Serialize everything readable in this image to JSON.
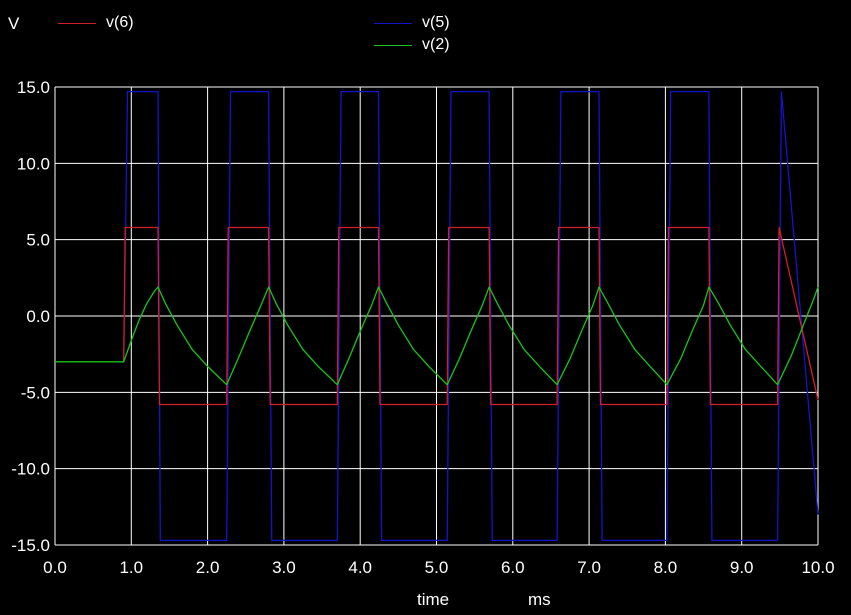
{
  "chart_data": {
    "type": "line",
    "ylabel_unit": "V",
    "xlabel": "time",
    "xlabel_unit": "ms",
    "xlim": [
      0.0,
      10.0
    ],
    "ylim": [
      -15.0,
      15.0
    ],
    "grid": true,
    "x_ticks": [
      "0.0",
      "1.0",
      "2.0",
      "3.0",
      "4.0",
      "5.0",
      "6.0",
      "7.0",
      "8.0",
      "9.0",
      "10.0"
    ],
    "y_ticks": [
      "15.0",
      "10.0",
      "5.0",
      "0.0",
      "-5.0",
      "-10.0",
      "-15.0"
    ],
    "legend": [
      {
        "name": "v(6)",
        "color": "#d01f2a"
      },
      {
        "name": "v(5)",
        "color": "#1414c8"
      },
      {
        "name": "v(2)",
        "color": "#18c418"
      }
    ],
    "series": [
      {
        "name": "v(6)",
        "color": "#d01f2a",
        "x": [
          0.9,
          0.92,
          1.35,
          1.37,
          2.25,
          2.27,
          2.8,
          2.82,
          3.7,
          3.72,
          4.24,
          4.26,
          5.14,
          5.16,
          5.69,
          5.71,
          6.58,
          6.6,
          7.13,
          7.15,
          8.02,
          8.04,
          8.57,
          8.59,
          9.47,
          9.49,
          10.0
        ],
        "values": [
          -3.0,
          5.8,
          5.8,
          -5.8,
          -5.8,
          5.8,
          5.8,
          -5.8,
          -5.8,
          5.8,
          5.8,
          -5.8,
          -5.8,
          5.8,
          5.8,
          -5.8,
          -5.8,
          5.8,
          5.8,
          -5.8,
          -5.8,
          5.8,
          5.8,
          -5.8,
          -5.8,
          5.8,
          -5.5
        ]
      },
      {
        "name": "v(5)",
        "color": "#1414c8",
        "x": [
          0.9,
          0.95,
          1.35,
          1.38,
          2.25,
          2.3,
          2.8,
          2.84,
          3.7,
          3.75,
          4.24,
          4.28,
          5.14,
          5.19,
          5.69,
          5.73,
          6.58,
          6.63,
          7.13,
          7.17,
          8.02,
          8.07,
          8.57,
          8.61,
          9.47,
          9.52,
          10.0
        ],
        "values": [
          -3.0,
          14.7,
          14.7,
          -14.7,
          -14.7,
          14.7,
          14.7,
          -14.7,
          -14.7,
          14.7,
          14.7,
          -14.7,
          -14.7,
          14.7,
          14.7,
          -14.7,
          -14.7,
          14.7,
          14.7,
          -14.7,
          -14.7,
          14.7,
          14.7,
          -14.7,
          -14.7,
          14.7,
          -13.0
        ]
      },
      {
        "name": "v(2)",
        "color": "#18c418",
        "x": [
          0.0,
          0.9,
          1.0,
          1.1,
          1.2,
          1.3,
          1.35,
          1.45,
          1.6,
          1.8,
          2.0,
          2.25,
          2.4,
          2.55,
          2.7,
          2.8,
          2.9,
          3.05,
          3.25,
          3.45,
          3.7,
          3.85,
          4.0,
          4.15,
          4.24,
          4.35,
          4.5,
          4.7,
          4.9,
          5.14,
          5.3,
          5.45,
          5.6,
          5.69,
          5.8,
          5.95,
          6.15,
          6.35,
          6.58,
          6.75,
          6.9,
          7.05,
          7.13,
          7.25,
          7.4,
          7.6,
          7.8,
          8.02,
          8.2,
          8.35,
          8.5,
          8.57,
          8.7,
          8.85,
          9.05,
          9.25,
          9.47,
          9.65,
          9.8,
          9.95,
          10.0
        ],
        "values": [
          -3.0,
          -3.0,
          -1.6,
          -0.3,
          0.8,
          1.6,
          1.9,
          0.8,
          -0.6,
          -2.2,
          -3.3,
          -4.5,
          -2.8,
          -1.0,
          0.7,
          1.9,
          0.8,
          -0.6,
          -2.2,
          -3.3,
          -4.5,
          -2.8,
          -1.0,
          0.7,
          1.9,
          0.8,
          -0.6,
          -2.2,
          -3.3,
          -4.5,
          -2.8,
          -1.0,
          0.7,
          1.9,
          0.8,
          -0.6,
          -2.2,
          -3.3,
          -4.5,
          -2.8,
          -1.0,
          0.7,
          1.9,
          0.8,
          -0.6,
          -2.2,
          -3.3,
          -4.5,
          -2.8,
          -1.0,
          0.7,
          1.9,
          0.8,
          -0.6,
          -2.2,
          -3.3,
          -4.5,
          -2.6,
          -0.7,
          1.2,
          1.9
        ]
      }
    ]
  }
}
